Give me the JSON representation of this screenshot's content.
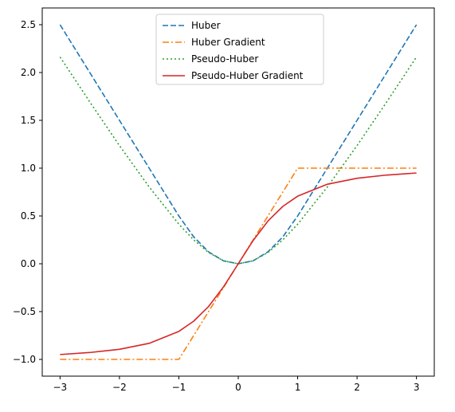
{
  "chart_data": {
    "type": "line",
    "title": "",
    "xlabel": "",
    "ylabel": "",
    "xlim": [
      -3.3,
      3.3
    ],
    "ylim": [
      -1.175,
      2.675
    ],
    "x_ticks": [
      -3,
      -2,
      -1,
      0,
      1,
      2,
      3
    ],
    "x_tick_labels": [
      "−3",
      "−2",
      "−1",
      "0",
      "1",
      "2",
      "3"
    ],
    "y_ticks": [
      -1.0,
      -0.5,
      0.0,
      0.5,
      1.0,
      1.5,
      2.0,
      2.5
    ],
    "y_tick_labels": [
      "−1.0",
      "−0.5",
      "0.0",
      "0.5",
      "1.0",
      "1.5",
      "2.0",
      "2.5"
    ],
    "grid": false,
    "legend_position": "top-center",
    "series": [
      {
        "name": "Huber",
        "color": "#1f77b4",
        "style": "dashed",
        "x": [
          -3,
          -2.5,
          -2,
          -1.5,
          -1,
          -0.75,
          -0.5,
          -0.25,
          0,
          0.25,
          0.5,
          0.75,
          1,
          1.5,
          2,
          2.5,
          3
        ],
        "y": [
          2.5,
          2.0,
          1.5,
          1.0,
          0.5,
          0.28125,
          0.125,
          0.03125,
          0,
          0.03125,
          0.125,
          0.28125,
          0.5,
          1.0,
          1.5,
          2.0,
          2.5
        ]
      },
      {
        "name": "Huber Gradient",
        "color": "#ff7f0e",
        "style": "dashdot",
        "x": [
          -3,
          -1,
          1,
          3
        ],
        "y": [
          -1.0,
          -1.0,
          1.0,
          1.0
        ]
      },
      {
        "name": "Pseudo-Huber",
        "color": "#2ca02c",
        "style": "dotted",
        "x": [
          -3,
          -2.5,
          -2,
          -1.5,
          -1,
          -0.75,
          -0.5,
          -0.25,
          0,
          0.25,
          0.5,
          0.75,
          1,
          1.5,
          2,
          2.5,
          3
        ],
        "y": [
          2.162,
          1.693,
          1.236,
          0.803,
          0.414,
          0.25,
          0.118,
          0.031,
          0,
          0.031,
          0.118,
          0.25,
          0.414,
          0.803,
          1.236,
          1.693,
          2.162
        ]
      },
      {
        "name": "Pseudo-Huber Gradient",
        "color": "#d62728",
        "style": "solid",
        "x": [
          -3,
          -2.5,
          -2,
          -1.5,
          -1,
          -0.75,
          -0.5,
          -0.25,
          0,
          0.25,
          0.5,
          0.75,
          1,
          1.5,
          2,
          2.5,
          3
        ],
        "y": [
          -0.949,
          -0.928,
          -0.894,
          -0.832,
          -0.707,
          -0.6,
          -0.447,
          -0.243,
          0,
          0.243,
          0.447,
          0.6,
          0.707,
          0.832,
          0.894,
          0.928,
          0.949
        ]
      }
    ]
  }
}
